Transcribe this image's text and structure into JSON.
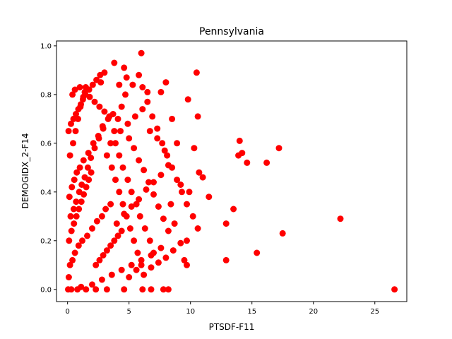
{
  "chart_data": {
    "type": "scatter",
    "title": "Pennsylvania",
    "xlabel": "PTSDF-F11",
    "ylabel": "DEMOGIDX_2-F14",
    "xlim": [
      -0.9,
      27.6
    ],
    "ylim": [
      -0.05,
      1.02
    ],
    "xticks": [
      0,
      5,
      10,
      15,
      20,
      25
    ],
    "yticks": [
      0.0,
      0.2,
      0.4,
      0.6,
      0.8,
      1.0
    ],
    "xtick_labels": [
      "0",
      "5",
      "10",
      "15",
      "20",
      "25"
    ],
    "ytick_labels": [
      "0.0",
      "0.2",
      "0.4",
      "0.6",
      "0.8",
      "1.0"
    ],
    "grid": false,
    "marker_color": "#ff0000",
    "series": [
      {
        "points": [
          [
            0.05,
            0.0
          ],
          [
            0.3,
            0.0
          ],
          [
            0.8,
            0.0
          ],
          [
            1.1,
            0.01
          ],
          [
            1.5,
            0.0
          ],
          [
            2.3,
            0.0
          ],
          [
            3.2,
            0.0
          ],
          [
            4.6,
            0.0
          ],
          [
            6.1,
            0.0
          ],
          [
            6.8,
            0.0
          ],
          [
            7.8,
            0.0
          ],
          [
            8.2,
            0.0
          ],
          [
            26.6,
            0.0
          ],
          [
            0.1,
            0.05
          ],
          [
            0.2,
            0.1
          ],
          [
            0.4,
            0.12
          ],
          [
            0.6,
            0.15
          ],
          [
            0.9,
            0.18
          ],
          [
            1.2,
            0.2
          ],
          [
            1.6,
            0.22
          ],
          [
            2.0,
            0.25
          ],
          [
            2.4,
            0.28
          ],
          [
            2.8,
            0.3
          ],
          [
            3.1,
            0.33
          ],
          [
            3.5,
            0.35
          ],
          [
            0.15,
            0.38
          ],
          [
            0.35,
            0.42
          ],
          [
            0.55,
            0.45
          ],
          [
            0.75,
            0.48
          ],
          [
            1.0,
            0.5
          ],
          [
            1.3,
            0.53
          ],
          [
            1.7,
            0.56
          ],
          [
            2.1,
            0.6
          ],
          [
            2.5,
            0.63
          ],
          [
            2.9,
            0.66
          ],
          [
            3.3,
            0.7
          ],
          [
            3.7,
            0.72
          ],
          [
            0.2,
            0.55
          ],
          [
            0.45,
            0.6
          ],
          [
            0.65,
            0.65
          ],
          [
            0.85,
            0.7
          ],
          [
            1.05,
            0.75
          ],
          [
            1.25,
            0.78
          ],
          [
            1.45,
            0.8
          ],
          [
            1.75,
            0.82
          ],
          [
            2.05,
            0.84
          ],
          [
            2.35,
            0.86
          ],
          [
            2.65,
            0.88
          ],
          [
            0.25,
            0.3
          ],
          [
            0.5,
            0.33
          ],
          [
            0.7,
            0.36
          ],
          [
            0.95,
            0.4
          ],
          [
            1.15,
            0.43
          ],
          [
            1.4,
            0.46
          ],
          [
            1.65,
            0.5
          ],
          [
            1.9,
            0.54
          ],
          [
            2.2,
            0.58
          ],
          [
            2.55,
            0.62
          ],
          [
            2.85,
            0.67
          ],
          [
            0.12,
            0.2
          ],
          [
            0.32,
            0.24
          ],
          [
            0.52,
            0.27
          ],
          [
            0.72,
            0.3
          ],
          [
            0.92,
            0.33
          ],
          [
            1.12,
            0.36
          ],
          [
            1.32,
            0.39
          ],
          [
            1.52,
            0.42
          ],
          [
            1.72,
            0.45
          ],
          [
            1.92,
            0.48
          ],
          [
            0.08,
            0.65
          ],
          [
            0.28,
            0.68
          ],
          [
            0.48,
            0.7
          ],
          [
            0.68,
            0.72
          ],
          [
            0.88,
            0.74
          ],
          [
            1.08,
            0.76
          ],
          [
            1.28,
            0.79
          ],
          [
            1.48,
            0.83
          ],
          [
            3.8,
            0.93
          ],
          [
            4.6,
            0.91
          ],
          [
            6.0,
            0.97
          ],
          [
            5.8,
            0.88
          ],
          [
            4.8,
            0.87
          ],
          [
            3.0,
            0.89
          ],
          [
            2.7,
            0.85
          ],
          [
            4.2,
            0.84
          ],
          [
            5.3,
            0.84
          ],
          [
            3.9,
            0.6
          ],
          [
            4.2,
            0.55
          ],
          [
            4.5,
            0.5
          ],
          [
            4.9,
            0.45
          ],
          [
            5.2,
            0.4
          ],
          [
            5.6,
            0.35
          ],
          [
            5.9,
            0.3
          ],
          [
            6.3,
            0.25
          ],
          [
            6.7,
            0.2
          ],
          [
            7.0,
            0.15
          ],
          [
            5.0,
            0.62
          ],
          [
            5.4,
            0.58
          ],
          [
            5.8,
            0.53
          ],
          [
            6.2,
            0.49
          ],
          [
            6.6,
            0.44
          ],
          [
            7.0,
            0.39
          ],
          [
            7.4,
            0.34
          ],
          [
            7.8,
            0.29
          ],
          [
            8.2,
            0.24
          ],
          [
            6.5,
            0.77
          ],
          [
            6.9,
            0.71
          ],
          [
            7.3,
            0.66
          ],
          [
            7.7,
            0.6
          ],
          [
            8.1,
            0.55
          ],
          [
            8.5,
            0.5
          ],
          [
            8.9,
            0.45
          ],
          [
            9.3,
            0.4
          ],
          [
            9.7,
            0.35
          ],
          [
            6.1,
            0.83
          ],
          [
            6.5,
            0.81
          ],
          [
            7.6,
            0.81
          ],
          [
            8.0,
            0.85
          ],
          [
            8.5,
            0.7
          ],
          [
            8.9,
            0.6
          ],
          [
            9.2,
            0.43
          ],
          [
            9.7,
            0.2
          ],
          [
            9.7,
            0.1
          ],
          [
            9.9,
            0.4
          ],
          [
            9.8,
            0.78
          ],
          [
            10.5,
            0.89
          ],
          [
            10.6,
            0.71
          ],
          [
            10.3,
            0.58
          ],
          [
            10.7,
            0.48
          ],
          [
            11.0,
            0.46
          ],
          [
            10.2,
            0.3
          ],
          [
            10.6,
            0.25
          ],
          [
            9.5,
            0.12
          ],
          [
            11.5,
            0.38
          ],
          [
            12.9,
            0.27
          ],
          [
            12.9,
            0.12
          ],
          [
            13.5,
            0.33
          ],
          [
            13.9,
            0.55
          ],
          [
            14.0,
            0.61
          ],
          [
            14.2,
            0.56
          ],
          [
            14.6,
            0.52
          ],
          [
            15.4,
            0.15
          ],
          [
            16.2,
            0.52
          ],
          [
            17.2,
            0.58
          ],
          [
            17.5,
            0.23
          ],
          [
            22.2,
            0.29
          ],
          [
            0.4,
            0.8
          ],
          [
            0.6,
            0.82
          ],
          [
            1.0,
            0.83
          ],
          [
            1.4,
            0.81
          ],
          [
            1.8,
            0.79
          ],
          [
            2.2,
            0.77
          ],
          [
            2.6,
            0.75
          ],
          [
            3.0,
            0.73
          ],
          [
            3.4,
            0.71
          ],
          [
            3.6,
            0.5
          ],
          [
            3.9,
            0.45
          ],
          [
            4.2,
            0.4
          ],
          [
            4.5,
            0.35
          ],
          [
            4.8,
            0.3
          ],
          [
            5.1,
            0.25
          ],
          [
            5.4,
            0.2
          ],
          [
            5.7,
            0.15
          ],
          [
            6.0,
            0.1
          ],
          [
            3.2,
            0.55
          ],
          [
            3.5,
            0.6
          ],
          [
            3.8,
            0.65
          ],
          [
            4.1,
            0.7
          ],
          [
            4.4,
            0.75
          ],
          [
            4.7,
            0.8
          ],
          [
            2.3,
            0.1
          ],
          [
            2.6,
            0.12
          ],
          [
            2.9,
            0.14
          ],
          [
            3.2,
            0.16
          ],
          [
            3.5,
            0.18
          ],
          [
            3.8,
            0.2
          ],
          [
            4.1,
            0.22
          ],
          [
            4.4,
            0.24
          ],
          [
            5.0,
            0.05
          ],
          [
            5.6,
            0.08
          ],
          [
            6.2,
            0.06
          ],
          [
            6.8,
            0.09
          ],
          [
            7.4,
            0.11
          ],
          [
            8.0,
            0.13
          ],
          [
            8.6,
            0.16
          ],
          [
            9.2,
            0.19
          ],
          [
            2.0,
            0.02
          ],
          [
            2.8,
            0.04
          ],
          [
            3.6,
            0.06
          ],
          [
            4.4,
            0.08
          ],
          [
            5.2,
            0.1
          ],
          [
            6.0,
            0.12
          ],
          [
            6.8,
            0.14
          ],
          [
            7.6,
            0.17
          ],
          [
            4.0,
            0.27
          ],
          [
            4.6,
            0.31
          ],
          [
            5.2,
            0.34
          ],
          [
            5.8,
            0.37
          ],
          [
            6.4,
            0.41
          ],
          [
            7.0,
            0.44
          ],
          [
            7.6,
            0.47
          ],
          [
            8.2,
            0.51
          ],
          [
            4.3,
            0.65
          ],
          [
            4.9,
            0.68
          ],
          [
            5.5,
            0.71
          ],
          [
            6.1,
            0.74
          ],
          [
            6.7,
            0.65
          ],
          [
            7.3,
            0.62
          ],
          [
            7.9,
            0.57
          ],
          [
            8.4,
            0.35
          ],
          [
            8.7,
            0.27
          ]
        ]
      }
    ]
  }
}
